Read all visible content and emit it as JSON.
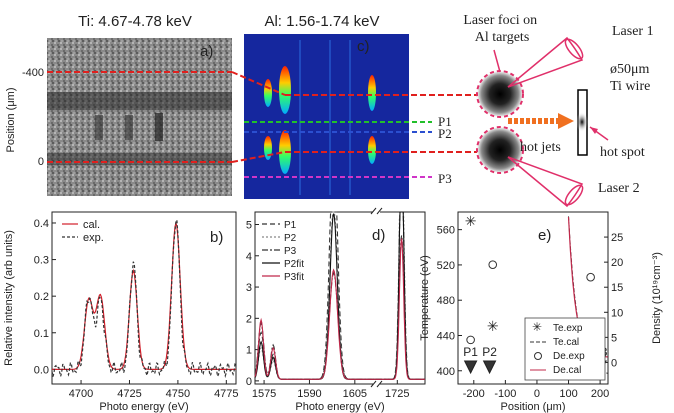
{
  "chart_data": [
    {
      "id": "a",
      "type": "image",
      "panel_label": "a)",
      "title": "Ti: 4.67-4.78 keV",
      "ylabel": "Position (μm)",
      "yticks": [
        "-400",
        "0"
      ]
    },
    {
      "id": "c",
      "type": "heatmap",
      "panel_label": "c)",
      "title": "Al: 1.56-1.74 keV",
      "markers": [
        {
          "label": "P1",
          "color": "#22c02a"
        },
        {
          "label": "P2",
          "color": "#2b4fd0"
        },
        {
          "label": "P3",
          "color": "#d035c8"
        }
      ]
    },
    {
      "id": "b",
      "type": "line",
      "panel_label": "b)",
      "xlabel": "Photo energy (eV)",
      "ylabel": "Relative intensity (arb units)",
      "xlim": [
        4685,
        4780
      ],
      "ylim": [
        -0.04,
        0.43
      ],
      "xticks": [
        4700,
        4725,
        4750,
        4775
      ],
      "yticks": [
        0.0,
        0.1,
        0.2,
        0.3,
        0.4
      ],
      "series": [
        {
          "name": "cal.",
          "color": "#d11f2a",
          "dash": "",
          "peaks": [
            [
              4704,
              0.19,
              2.2
            ],
            [
              4710,
              0.2,
              2.2
            ],
            [
              4727,
              0.27,
              2.0
            ],
            [
              4749,
              0.4,
              2.2
            ]
          ]
        },
        {
          "name": "exp.",
          "color": "#333333",
          "dash": "3,2",
          "peaks": [
            [
              4704,
              0.2,
              2.0
            ],
            [
              4710,
              0.19,
              2.0
            ],
            [
              4727,
              0.29,
              1.8
            ],
            [
              4749,
              0.41,
              2.0
            ]
          ]
        }
      ]
    },
    {
      "id": "d",
      "type": "line",
      "panel_label": "d)",
      "xlabel": "Photo energy (eV)",
      "ylim": [
        -0.1,
        5.4
      ],
      "yticks": [
        0,
        1,
        2,
        3,
        4,
        5
      ],
      "xticks": [
        1575,
        1590,
        1605,
        1725
      ],
      "break_left": [
        1572,
        1612
      ],
      "break_right": [
        1715,
        1738
      ],
      "series": [
        {
          "name": "P1",
          "color": "#333333",
          "dash": "5,3"
        },
        {
          "name": "P2",
          "color": "#888888",
          "dash": "2,2"
        },
        {
          "name": "P3",
          "color": "#333333",
          "dash": "6,2,2,2"
        },
        {
          "name": "P2fit",
          "color": "#111111",
          "dash": ""
        },
        {
          "name": "P3fit",
          "color": "#c0284a",
          "dash": ""
        }
      ]
    },
    {
      "id": "e",
      "type": "scatter",
      "panel_label": "e)",
      "xlabel": "Position (μm)",
      "ylabel": "Temperature (eV)",
      "y2label": "Density (10¹⁹cm⁻³)",
      "xlim": [
        -250,
        225
      ],
      "xticks": [
        -200,
        -100,
        0,
        100,
        200
      ],
      "ylim": [
        385,
        580
      ],
      "yticks": [
        400,
        440,
        480,
        520,
        560
      ],
      "y2lim": [
        -4.3,
        30
      ],
      "y2ticks": [
        0,
        5,
        10,
        15,
        20,
        25
      ],
      "te_exp": [
        [
          -210,
          570
        ],
        [
          -140,
          451
        ],
        [
          170,
          439
        ]
      ],
      "de_exp": [
        [
          -210,
          4.5
        ],
        [
          -140,
          19.5
        ],
        [
          170,
          17
        ],
        [
          205,
          1.5
        ]
      ],
      "markers": [
        "P1",
        "P2",
        "P3"
      ],
      "legend": [
        "Te.exp",
        "Te.cal",
        "De.exp",
        "De.cal"
      ]
    }
  ],
  "labels": {
    "laser_foci": "Laser foci on\nAl targets",
    "laser1": "Laser 1",
    "laser2": "Laser 2",
    "wire": "ø50μm\nTi wire",
    "hot_jets": "hot jets",
    "hot_spot": "hot spot"
  }
}
